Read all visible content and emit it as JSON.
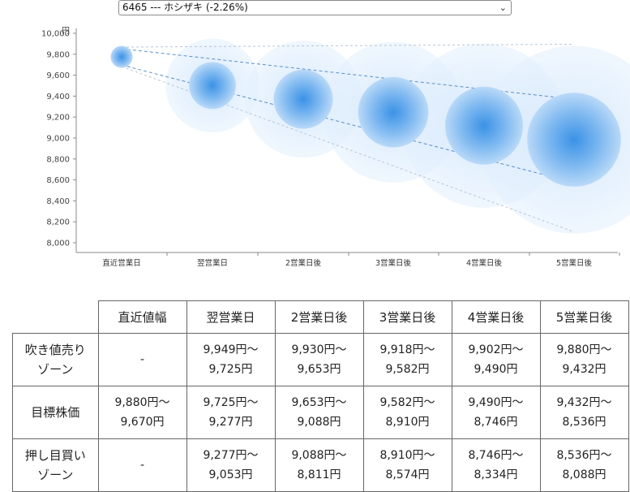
{
  "selector": {
    "value": "6465 --- ホシザキ (-2.26%)"
  },
  "chart_data": {
    "type": "bubble-forecast",
    "y_unit": "円",
    "ylim": [
      8000,
      10000
    ],
    "y_ticks": [
      "8,000",
      "8,200",
      "8,400",
      "8,600",
      "8,800",
      "9,000",
      "9,200",
      "9,400",
      "9,600",
      "9,800",
      "10,000"
    ],
    "categories": [
      "直近営業日",
      "翌営業日",
      "2営業日後",
      "3営業日後",
      "4営業日後",
      "5営業日後"
    ],
    "center": [
      9775,
      9501,
      9371,
      9246,
      9118,
      8984
    ],
    "upper": [
      9880,
      9949,
      9930,
      9918,
      9902,
      9880
    ],
    "lower": [
      9670,
      9053,
      8811,
      8574,
      8334,
      8088
    ],
    "inner_upper": [
      9880,
      9725,
      9653,
      9582,
      9490,
      9432
    ],
    "inner_lower": [
      9670,
      9277,
      9088,
      8910,
      8746,
      8536
    ],
    "colors": {
      "bubble": "#2f8de4",
      "halo": "#cfe5fb",
      "line": "#5b8fc9"
    }
  },
  "table": {
    "headers": [
      "直近値幅",
      "翌営業日",
      "2営業日後",
      "3営業日後",
      "4営業日後",
      "5営業日後"
    ],
    "rows": [
      {
        "label": [
          "吹き値売り",
          "ゾーン"
        ],
        "cells": [
          [
            "-"
          ],
          [
            "9,949円〜",
            "9,725円"
          ],
          [
            "9,930円〜",
            "9,653円"
          ],
          [
            "9,918円〜",
            "9,582円"
          ],
          [
            "9,902円〜",
            "9,490円"
          ],
          [
            "9,880円〜",
            "9,432円"
          ]
        ]
      },
      {
        "label": [
          "目標株価"
        ],
        "cells": [
          [
            "9,880円〜",
            "9,670円"
          ],
          [
            "9,725円〜",
            "9,277円"
          ],
          [
            "9,653円〜",
            "9,088円"
          ],
          [
            "9,582円〜",
            "8,910円"
          ],
          [
            "9,490円〜",
            "8,746円"
          ],
          [
            "9,432円〜",
            "8,536円"
          ]
        ]
      },
      {
        "label": [
          "押し目買い",
          "ゾーン"
        ],
        "cells": [
          [
            "-"
          ],
          [
            "9,277円〜",
            "9,053円"
          ],
          [
            "9,088円〜",
            "8,811円"
          ],
          [
            "8,910円〜",
            "8,574円"
          ],
          [
            "8,746円〜",
            "8,334円"
          ],
          [
            "8,536円〜",
            "8,088円"
          ]
        ]
      }
    ]
  }
}
